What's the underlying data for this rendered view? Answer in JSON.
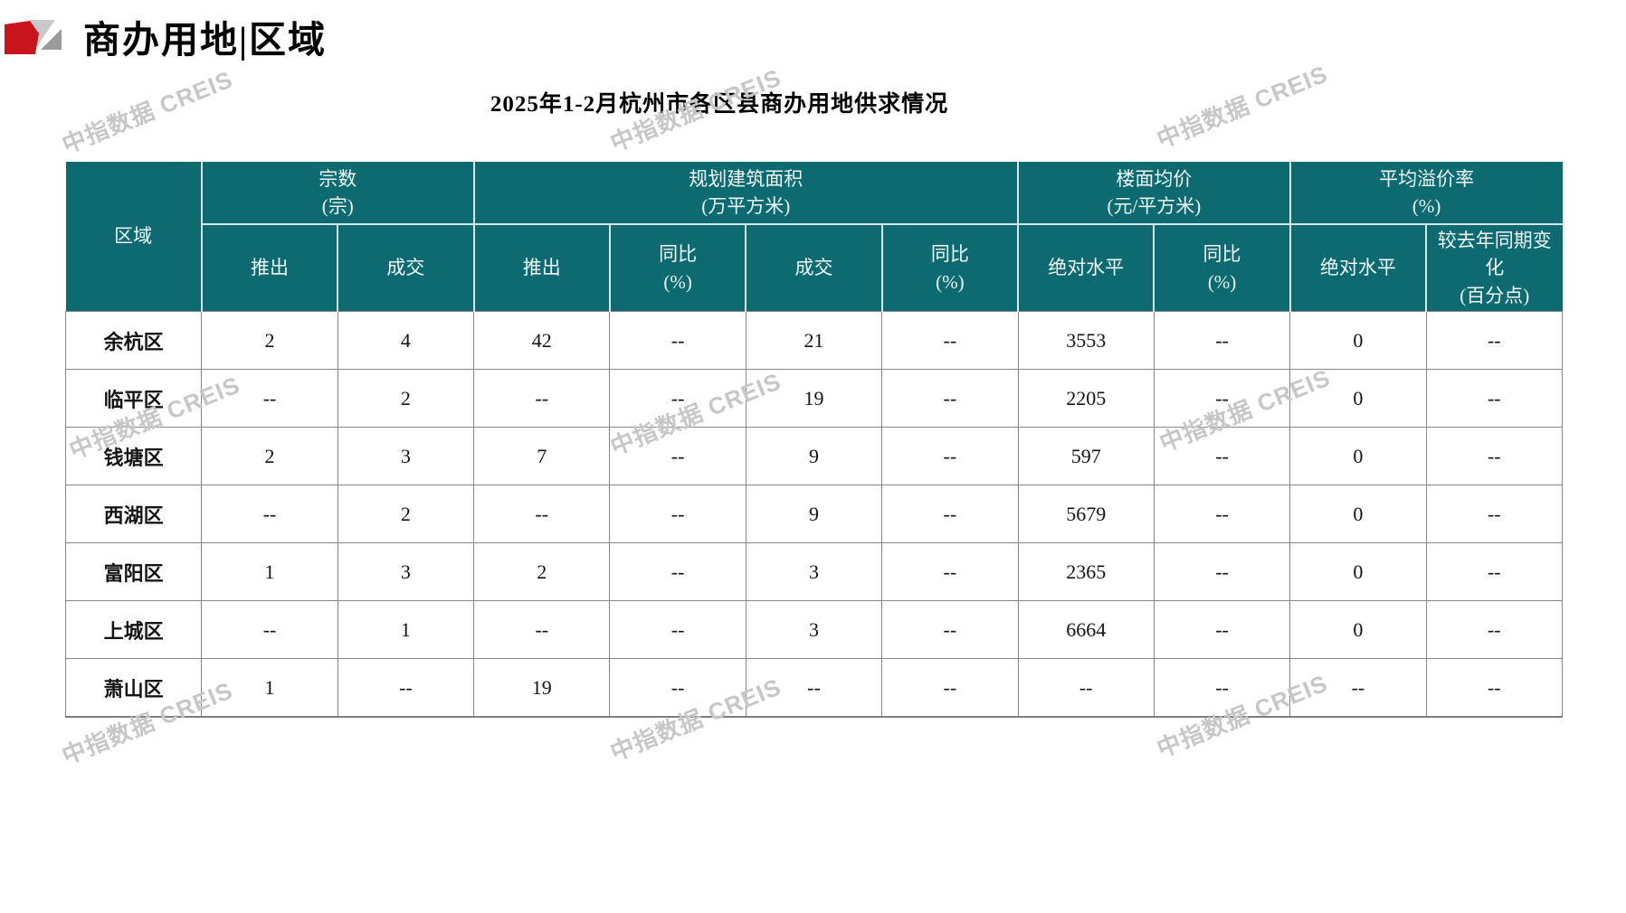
{
  "page": {
    "title": "商办用地|区域"
  },
  "watermark": {
    "text": "中指数据 CREIS"
  },
  "colors": {
    "header_teal": "#0d6a71",
    "accent_red": "#c8151d",
    "logo_gray_light": "#c9c9c9",
    "logo_gray_dark": "#9a9a9a",
    "watermark_gray": "#c7c7c7",
    "grid_gray": "#878787"
  },
  "table": {
    "title": "2025年1-2月杭州市各区县商办用地供求情况",
    "header": {
      "region": "区域",
      "groups": [
        {
          "title": "宗数\n(宗)",
          "cols": 2
        },
        {
          "title": "规划建筑面积\n(万平方米)",
          "cols": 4
        },
        {
          "title": "楼面均价\n(元/平方米)",
          "cols": 2
        },
        {
          "title": "平均溢价率\n(%)",
          "cols": 2
        }
      ],
      "subheaders": [
        "推出",
        "成交",
        "推出",
        "同比\n(%)",
        "成交",
        "同比\n(%)",
        "绝对水平",
        "同比\n(%)",
        "绝对水平",
        "较去年同期变\n化\n(百分点)"
      ]
    },
    "rows": [
      {
        "region": "余杭区",
        "cells": [
          "2",
          "4",
          "42",
          "--",
          "21",
          "--",
          "3553",
          "--",
          "0",
          "--"
        ]
      },
      {
        "region": "临平区",
        "cells": [
          "--",
          "2",
          "--",
          "--",
          "19",
          "--",
          "2205",
          "--",
          "0",
          "--"
        ]
      },
      {
        "region": "钱塘区",
        "cells": [
          "2",
          "3",
          "7",
          "--",
          "9",
          "--",
          "597",
          "--",
          "0",
          "--"
        ]
      },
      {
        "region": "西湖区",
        "cells": [
          "--",
          "2",
          "--",
          "--",
          "9",
          "--",
          "5679",
          "--",
          "0",
          "--"
        ]
      },
      {
        "region": "富阳区",
        "cells": [
          "1",
          "3",
          "2",
          "--",
          "3",
          "--",
          "2365",
          "--",
          "0",
          "--"
        ]
      },
      {
        "region": "上城区",
        "cells": [
          "--",
          "1",
          "--",
          "--",
          "3",
          "--",
          "6664",
          "--",
          "0",
          "--"
        ]
      },
      {
        "region": "萧山区",
        "cells": [
          "1",
          "--",
          "19",
          "--",
          "--",
          "--",
          "--",
          "--",
          "--",
          "--"
        ]
      }
    ]
  }
}
